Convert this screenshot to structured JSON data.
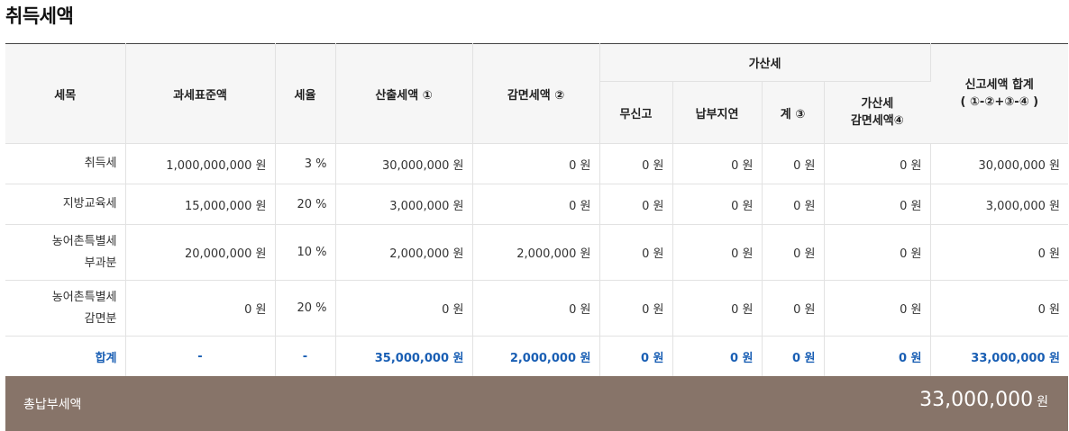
{
  "title": "취득세액",
  "headers": {
    "item": "세목",
    "base": "과세표준액",
    "rate": "세율",
    "calc": "산출세액 ①",
    "reduce": "감면세액 ②",
    "add_group": "가산세",
    "unfiled": "무신고",
    "late": "납부지연",
    "sub": "계 ③",
    "add_reduce_1": "가산세",
    "add_reduce_2": "감면세액④",
    "total_1": "신고세액 합계",
    "total_2": "( ①-②+③-④ )"
  },
  "rows": [
    {
      "item": [
        "취득세"
      ],
      "base": "1,000,000,000 원",
      "rate": "3 %",
      "calc": "30,000,000 원",
      "reduce": "0 원",
      "unfiled": "0 원",
      "late": "0 원",
      "sub": "0 원",
      "add_reduce": "0 원",
      "total": "30,000,000 원"
    },
    {
      "item": [
        "지방교육세"
      ],
      "base": "15,000,000 원",
      "rate": "20 %",
      "calc": "3,000,000 원",
      "reduce": "0 원",
      "unfiled": "0 원",
      "late": "0 원",
      "sub": "0 원",
      "add_reduce": "0 원",
      "total": "3,000,000 원"
    },
    {
      "item": [
        "농어촌특별세",
        "부과분"
      ],
      "base": "20,000,000 원",
      "rate": "10 %",
      "calc": "2,000,000 원",
      "reduce": "2,000,000 원",
      "unfiled": "0 원",
      "late": "0 원",
      "sub": "0 원",
      "add_reduce": "0 원",
      "total": "0 원"
    },
    {
      "item": [
        "농어촌특별세",
        "감면분"
      ],
      "base": "0 원",
      "rate": "20 %",
      "calc": "0 원",
      "reduce": "0 원",
      "unfiled": "0 원",
      "late": "0 원",
      "sub": "0 원",
      "add_reduce": "0 원",
      "total": "0 원"
    }
  ],
  "total_row": {
    "item": "합계",
    "base": "-",
    "rate": "-",
    "calc": "35,000,000 원",
    "reduce": "2,000,000 원",
    "unfiled": "0 원",
    "late": "0 원",
    "sub": "0 원",
    "add_reduce": "0 원",
    "total": "33,000,000 원"
  },
  "summary": {
    "label": "총납부세액",
    "amount": "33,000,000",
    "unit": "원"
  }
}
